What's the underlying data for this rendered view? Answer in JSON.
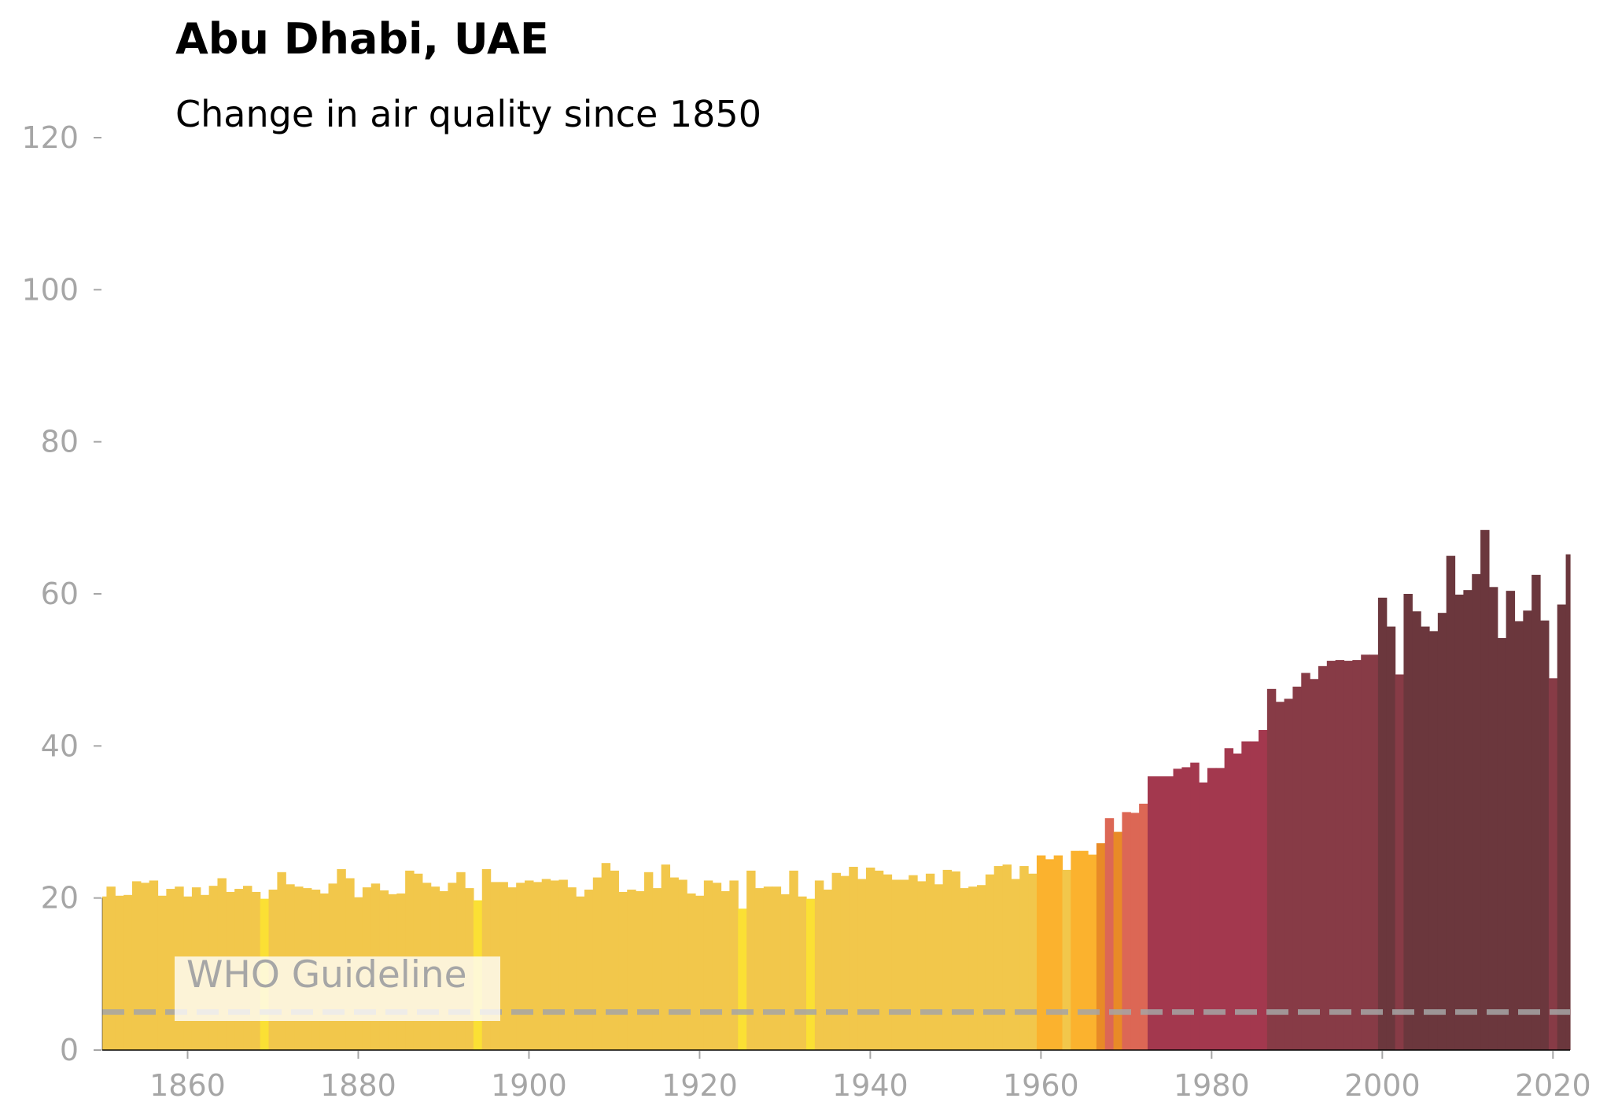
{
  "title": "Abu Dhabi, UAE",
  "subtitle": "Change in air quality since 1850",
  "chart_data": {
    "type": "bar",
    "xlim": [
      1850,
      2022
    ],
    "ylim": [
      0,
      120
    ],
    "grid": false,
    "x_ticks": [
      1860,
      1880,
      1900,
      1920,
      1940,
      1960,
      1980,
      2000,
      2020
    ],
    "y_ticks": [
      0,
      20,
      40,
      60,
      80,
      100,
      120
    ],
    "x": [
      1850,
      1851,
      1852,
      1853,
      1854,
      1855,
      1856,
      1857,
      1858,
      1859,
      1860,
      1861,
      1862,
      1863,
      1864,
      1865,
      1866,
      1867,
      1868,
      1869,
      1870,
      1871,
      1872,
      1873,
      1874,
      1875,
      1876,
      1877,
      1878,
      1879,
      1880,
      1881,
      1882,
      1883,
      1884,
      1885,
      1886,
      1887,
      1888,
      1889,
      1890,
      1891,
      1892,
      1893,
      1894,
      1895,
      1896,
      1897,
      1898,
      1899,
      1900,
      1901,
      1902,
      1903,
      1904,
      1905,
      1906,
      1907,
      1908,
      1909,
      1910,
      1911,
      1912,
      1913,
      1914,
      1915,
      1916,
      1917,
      1918,
      1919,
      1920,
      1921,
      1922,
      1923,
      1924,
      1925,
      1926,
      1927,
      1928,
      1929,
      1930,
      1931,
      1932,
      1933,
      1934,
      1935,
      1936,
      1937,
      1938,
      1939,
      1940,
      1941,
      1942,
      1943,
      1944,
      1945,
      1946,
      1947,
      1948,
      1949,
      1950,
      1951,
      1952,
      1953,
      1954,
      1955,
      1956,
      1957,
      1958,
      1959,
      1960,
      1961,
      1962,
      1963,
      1964,
      1965,
      1966,
      1967,
      1968,
      1969,
      1970,
      1971,
      1972,
      1973,
      1974,
      1975,
      1976,
      1977,
      1978,
      1979,
      1980,
      1981,
      1982,
      1983,
      1984,
      1985,
      1986,
      1987,
      1988,
      1989,
      1990,
      1991,
      1992,
      1993,
      1994,
      1995,
      1996,
      1997,
      1998,
      1999,
      2000,
      2001,
      2002,
      2003,
      2004,
      2005,
      2006,
      2007,
      2008,
      2009,
      2010,
      2011,
      2012,
      2013,
      2014,
      2015,
      2016,
      2017,
      2018,
      2019,
      2020,
      2021,
      2022
    ],
    "values": [
      20.2,
      21.5,
      20.3,
      20.4,
      22.2,
      22.0,
      22.3,
      20.3,
      21.2,
      21.5,
      20.2,
      21.4,
      20.4,
      21.6,
      22.6,
      20.8,
      21.2,
      21.6,
      20.8,
      19.9,
      21.1,
      23.4,
      21.8,
      21.5,
      21.3,
      21.1,
      20.6,
      21.9,
      23.8,
      22.6,
      20.1,
      21.4,
      21.9,
      21.0,
      20.5,
      20.6,
      23.6,
      23.2,
      22.0,
      21.5,
      20.9,
      22.0,
      23.4,
      21.3,
      19.7,
      23.8,
      22.1,
      22.1,
      21.4,
      22.0,
      22.3,
      22.1,
      22.5,
      22.3,
      22.4,
      21.4,
      20.2,
      21.1,
      22.7,
      24.6,
      23.6,
      20.8,
      21.1,
      20.9,
      23.4,
      21.3,
      24.4,
      22.7,
      22.4,
      20.6,
      20.3,
      22.3,
      22.0,
      20.9,
      22.3,
      18.6,
      23.6,
      21.3,
      21.5,
      21.5,
      20.5,
      23.6,
      20.2,
      19.9,
      22.3,
      21.1,
      23.3,
      22.9,
      24.1,
      22.5,
      24.0,
      23.6,
      23.1,
      22.4,
      22.4,
      23.0,
      22.2,
      23.2,
      21.8,
      23.7,
      23.5,
      21.3,
      21.5,
      21.7,
      23.1,
      24.2,
      24.4,
      22.5,
      24.2,
      23.2,
      25.6,
      25.1,
      25.6,
      23.7,
      26.2,
      26.2,
      25.7,
      27.2,
      30.5,
      28.7,
      31.3,
      31.2,
      32.4,
      36.0,
      36.0,
      36.0,
      37.0,
      37.2,
      37.8,
      35.2,
      37.1,
      37.1,
      39.7,
      39.0,
      40.6,
      40.6,
      42.1,
      47.5,
      45.8,
      46.2,
      47.8,
      49.6,
      48.8,
      50.5,
      51.2,
      51.3,
      51.2,
      51.3,
      52.0,
      52.0,
      59.5,
      55.7,
      49.4,
      60.0,
      57.7,
      55.7,
      55.1,
      57.5,
      65.0,
      59.9,
      60.5,
      62.6,
      68.4,
      60.9,
      54.2,
      60.4,
      56.4,
      57.8,
      62.5,
      56.5,
      48.9,
      58.6,
      65.2
    ],
    "colors": {
      "palette": [
        "#fbe034",
        "#f2c74b",
        "#fbb22e",
        "#e88a27",
        "#dc6755",
        "#a3384e",
        "#873b46",
        "#6b373d"
      ],
      "thresholds": [
        20,
        25,
        27,
        30,
        33,
        44,
        53,
        63
      ]
    },
    "reference_line": {
      "value": 5,
      "label": "WHO Guideline",
      "color": "#a6a6a6"
    }
  }
}
